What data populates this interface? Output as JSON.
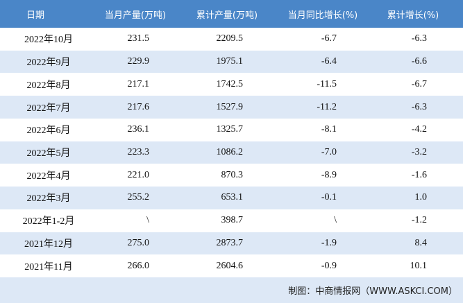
{
  "table": {
    "header": [
      "日期",
      "当月产量(万吨)",
      "累计产量(万吨)",
      "当月同比增长(%)",
      "累计增长(%)"
    ],
    "rows": [
      [
        "2022年10月",
        "231.5",
        "2209.5",
        "-6.7",
        "-6.3"
      ],
      [
        "2022年9月",
        "229.9",
        "1975.1",
        "-6.4",
        "-6.6"
      ],
      [
        "2022年8月",
        "217.1",
        "1742.5",
        "-11.5",
        "-6.7"
      ],
      [
        "2022年7月",
        "217.6",
        "1527.9",
        "-11.2",
        "-6.3"
      ],
      [
        "2022年6月",
        "236.1",
        "1325.7",
        "-8.1",
        "-4.2"
      ],
      [
        "2022年5月",
        "223.3",
        "1086.2",
        "-7.0",
        "-3.2"
      ],
      [
        "2022年4月",
        "221.0",
        "870.3",
        "-8.9",
        "-1.6"
      ],
      [
        "2022年3月",
        "255.2",
        "653.1",
        "-0.1",
        "1.0"
      ],
      [
        "2022年1-2月",
        "\\",
        "398.7",
        "\\",
        "-1.2"
      ],
      [
        "2021年12月",
        "275.0",
        "2873.7",
        "-1.9",
        "8.4"
      ],
      [
        "2021年11月",
        "266.0",
        "2604.6",
        "-0.9",
        "10.1"
      ]
    ],
    "source": "制图：中商情报网（WWW.ASKCI.COM）"
  }
}
